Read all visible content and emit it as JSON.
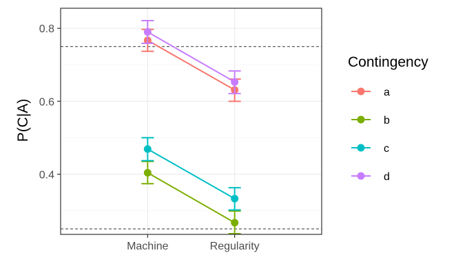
{
  "chart_data": {
    "type": "line",
    "categories": [
      "Machine",
      "Regularity"
    ],
    "ylabel": "P(C|A)",
    "xlabel": "",
    "ylim": [
      0.235,
      0.855
    ],
    "yticks": [
      0.4,
      0.6,
      0.8
    ],
    "y_tick_labels": [
      "0.4",
      "0.6",
      "0.8"
    ],
    "reference_lines": [
      0.75,
      0.25
    ],
    "grid": true,
    "legend": {
      "title": "Contingency",
      "position": "right"
    },
    "series": [
      {
        "name": "a",
        "color": "#F8766D",
        "values": [
          0.767,
          0.631
        ],
        "err_lower": [
          0.737,
          0.6
        ],
        "err_upper": [
          0.797,
          0.661
        ]
      },
      {
        "name": "b",
        "color": "#7CAE00",
        "values": [
          0.404,
          0.267
        ],
        "err_lower": [
          0.374,
          0.237
        ],
        "err_upper": [
          0.435,
          0.299
        ]
      },
      {
        "name": "c",
        "color": "#00BFC4",
        "values": [
          0.469,
          0.333
        ],
        "err_lower": [
          0.437,
          0.302
        ],
        "err_upper": [
          0.5,
          0.363
        ]
      },
      {
        "name": "d",
        "color": "#C77CFF",
        "values": [
          0.79,
          0.653
        ],
        "err_lower": [
          0.759,
          0.621
        ],
        "err_upper": [
          0.821,
          0.683
        ]
      }
    ]
  }
}
